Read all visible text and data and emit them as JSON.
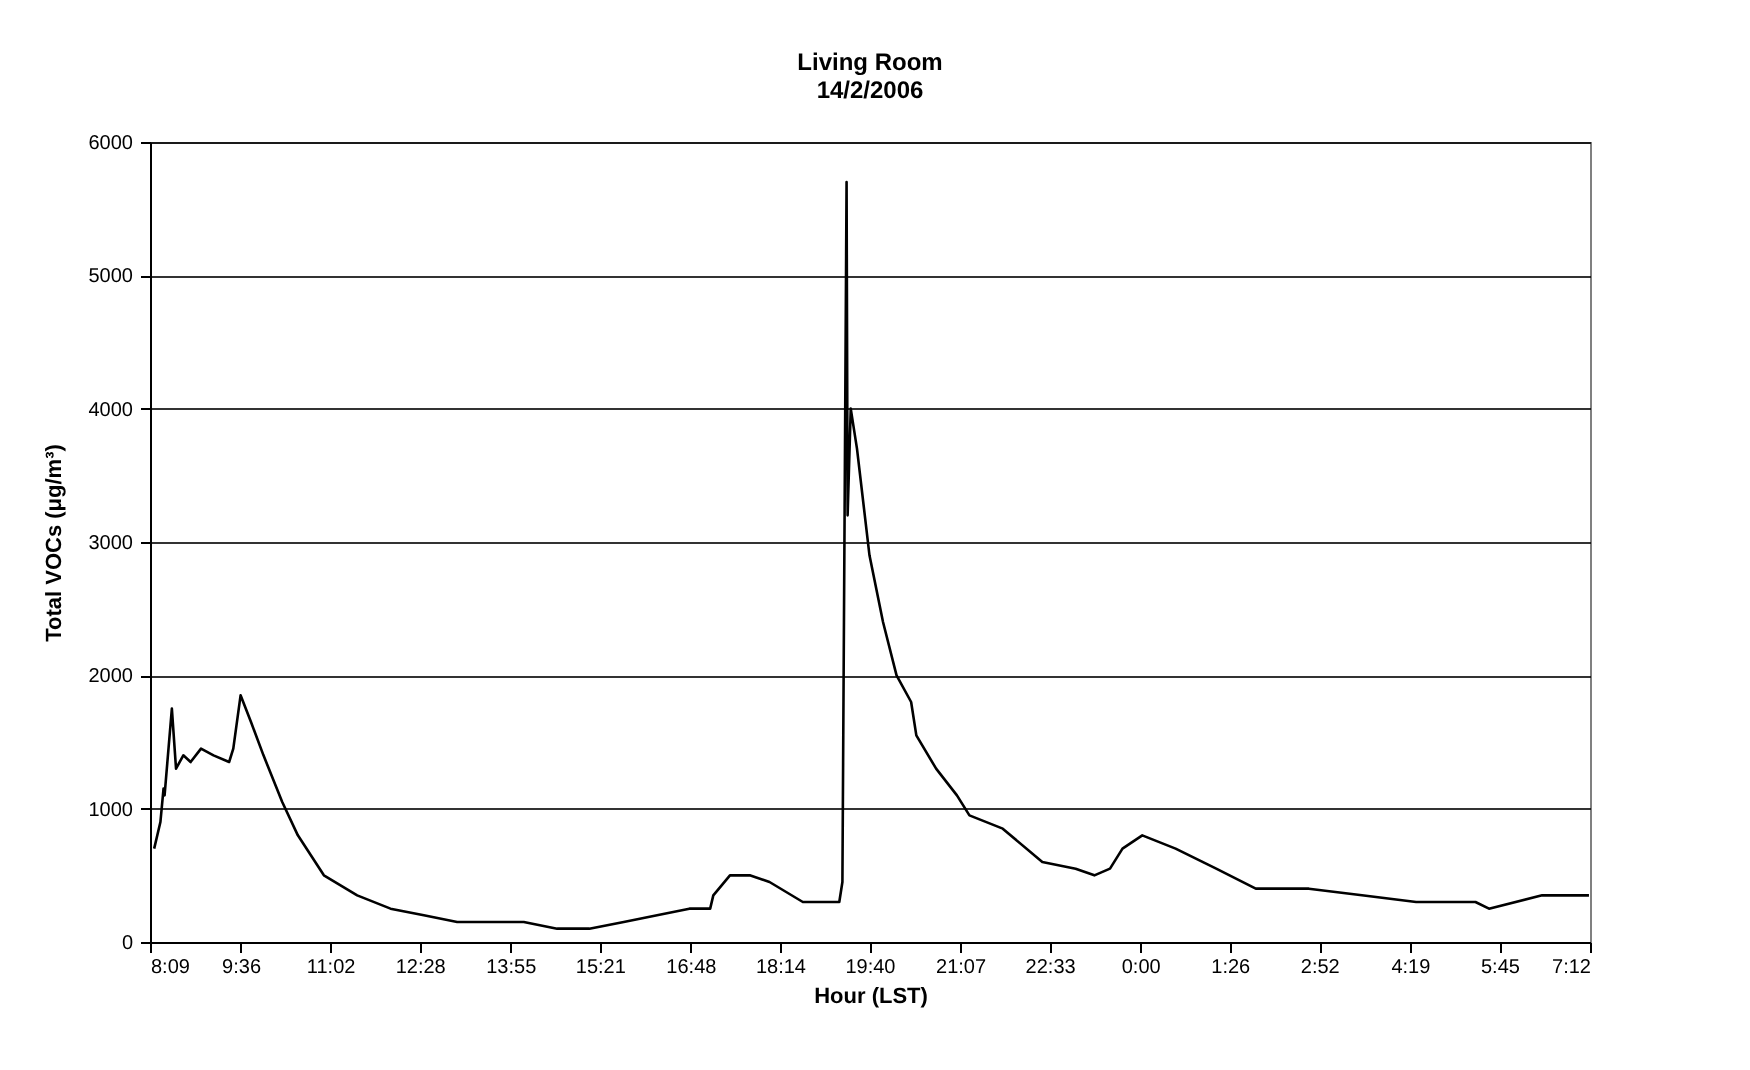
{
  "chart_data": {
    "type": "line",
    "title": [
      "Living Room",
      "14/2/2006"
    ],
    "xlabel": "Hour (LST)",
    "ylabel": "Total VOCs (μg/m³)",
    "x": [
      "2006-02-14T08:13",
      "2006-02-14T08:19",
      "2006-02-14T08:22",
      "2006-02-14T08:23",
      "2006-02-14T08:30",
      "2006-02-14T08:34",
      "2006-02-14T08:41",
      "2006-02-14T08:48",
      "2006-02-14T08:58",
      "2006-02-14T09:10",
      "2006-02-14T09:25",
      "2006-02-14T09:29",
      "2006-02-14T09:36",
      "2006-02-14T09:46",
      "2006-02-14T09:58",
      "2006-02-14T10:16",
      "2006-02-14T10:31",
      "2006-02-14T10:56",
      "2006-02-14T11:28",
      "2006-02-14T12:00",
      "2006-02-14T12:32",
      "2006-02-14T13:04",
      "2006-02-14T13:35",
      "2006-02-14T14:08",
      "2006-02-14T14:40",
      "2006-02-14T15:11",
      "2006-02-14T15:44",
      "2006-02-14T16:16",
      "2006-02-14T16:47",
      "2006-02-14T17:07",
      "2006-02-14T17:10",
      "2006-02-14T17:26",
      "2006-02-14T17:45",
      "2006-02-14T18:04",
      "2006-02-14T18:36",
      "2006-02-14T19:11",
      "2006-02-14T19:14",
      "2006-02-14T19:18",
      "2006-02-14T19:19",
      "2006-02-14T19:22",
      "2006-02-14T19:28",
      "2006-02-14T19:40",
      "2006-02-14T19:53",
      "2006-02-14T20:06",
      "2006-02-14T20:20",
      "2006-02-14T20:25",
      "2006-02-14T20:44",
      "2006-02-14T21:04",
      "2006-02-14T21:16",
      "2006-02-14T21:48",
      "2006-02-14T22:26",
      "2006-02-14T22:58",
      "2006-02-14T23:16",
      "2006-02-14T23:31",
      "2006-02-14T23:43",
      "2006-02-15T00:02",
      "2006-02-15T00:34",
      "2006-02-15T01:13",
      "2006-02-15T01:51",
      "2006-02-15T02:42",
      "2006-02-15T03:33",
      "2006-02-15T04:25",
      "2006-02-15T05:22",
      "2006-02-15T05:35",
      "2006-02-15T06:26",
      "2006-02-15T07:11"
    ],
    "series": [
      {
        "color": "#000000",
        "values": [
          700,
          900,
          1150,
          1100,
          1750,
          1300,
          1400,
          1350,
          1450,
          1400,
          1350,
          1450,
          1850,
          1650,
          1400,
          1050,
          800,
          500,
          350,
          250,
          200,
          150,
          150,
          150,
          100,
          100,
          150,
          200,
          250,
          250,
          350,
          500,
          500,
          450,
          300,
          300,
          450,
          5700,
          3200,
          4000,
          3700,
          2900,
          2400,
          2000,
          1800,
          1550,
          1300,
          1100,
          950,
          850,
          600,
          550,
          500,
          550,
          700,
          800,
          700,
          550,
          400,
          400,
          350,
          300,
          300,
          250,
          350,
          350
        ]
      }
    ],
    "xlim": [
      "2006-02-14T08:09",
      "2006-02-15T07:12"
    ],
    "xticks": [
      {
        "value": "2006-02-14T08:09",
        "label": "8:09"
      },
      {
        "value": "2006-02-14T09:36",
        "label": "9:36"
      },
      {
        "value": "2006-02-14T11:02",
        "label": "11:02"
      },
      {
        "value": "2006-02-14T12:28",
        "label": "12:28"
      },
      {
        "value": "2006-02-14T13:55",
        "label": "13:55"
      },
      {
        "value": "2006-02-14T15:21",
        "label": "15:21"
      },
      {
        "value": "2006-02-14T16:48",
        "label": "16:48"
      },
      {
        "value": "2006-02-14T18:14",
        "label": "18:14"
      },
      {
        "value": "2006-02-14T19:40",
        "label": "19:40"
      },
      {
        "value": "2006-02-14T21:07",
        "label": "21:07"
      },
      {
        "value": "2006-02-14T22:33",
        "label": "22:33"
      },
      {
        "value": "2006-02-15T00:00",
        "label": "0:00"
      },
      {
        "value": "2006-02-15T01:26",
        "label": "1:26"
      },
      {
        "value": "2006-02-15T02:52",
        "label": "2:52"
      },
      {
        "value": "2006-02-15T04:19",
        "label": "4:19"
      },
      {
        "value": "2006-02-15T05:45",
        "label": "5:45"
      },
      {
        "value": "2006-02-15T07:12",
        "label": "7:12"
      }
    ],
    "ylim": [
      0,
      6000
    ],
    "yticks": [
      0,
      1000,
      2000,
      3000,
      4000,
      5000,
      6000
    ],
    "grid": "y",
    "marker": "none",
    "line_style": "solid"
  }
}
